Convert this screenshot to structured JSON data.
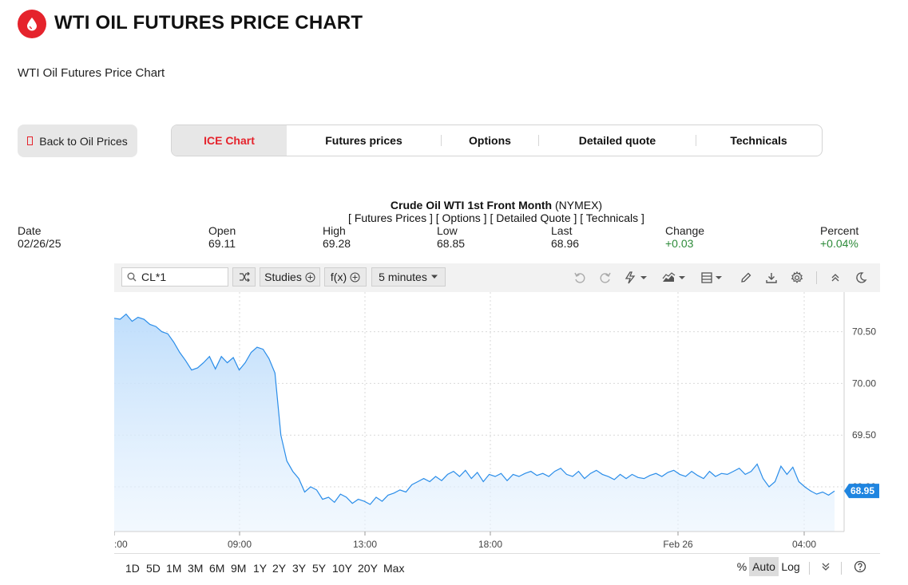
{
  "header": {
    "title": "WTI OIL FUTURES PRICE CHART",
    "subtitle": "WTI Oil Futures Price Chart",
    "logo_icon": "oil-drop-icon",
    "brand_color": "#e5232c"
  },
  "nav": {
    "back_label": "Back to Oil Prices",
    "tabs": [
      {
        "label": "ICE Chart",
        "active": true
      },
      {
        "label": "Futures prices",
        "active": false
      },
      {
        "label": "Options",
        "active": false
      },
      {
        "label": "Detailed quote",
        "active": false
      },
      {
        "label": "Technicals",
        "active": false
      }
    ]
  },
  "chart_header": {
    "name": "Crude Oil WTI 1st Front Month",
    "exchange": "(NYMEX)",
    "links": "[ Futures Prices ] [ Options ] [ Detailed Quote ] [ Technicals ]"
  },
  "quote": {
    "date_label": "Date",
    "date": "02/26/25",
    "open_label": "Open",
    "open": "69.11",
    "high_label": "High",
    "high": "69.28",
    "low_label": "Low",
    "low": "68.85",
    "last_label": "Last",
    "last": "68.96",
    "change_label": "Change",
    "change": "+0.03",
    "percent_label": "Percent",
    "percent": "+0.04%",
    "positive_color": "#2e8b3a"
  },
  "toolbar": {
    "symbol": "CL*1",
    "studies_label": "Studies",
    "fx_label": "f(x)",
    "interval": "5 minutes",
    "icons": [
      "search-icon",
      "compare-icon",
      "plus-circle-icon",
      "undo-icon",
      "redo-icon",
      "lightning-icon",
      "area-chart-icon",
      "layout-icon",
      "pencil-icon",
      "download-icon",
      "gear-icon",
      "collapse-icon",
      "moon-icon"
    ]
  },
  "chart_data": {
    "type": "area",
    "ylim": [
      68.75,
      70.75
    ],
    "yticks": [
      "70.50",
      "70.00",
      "69.50",
      "69.00"
    ],
    "xticks": [
      ":00",
      "09:00",
      "13:00",
      "18:00",
      "Feb 26",
      "04:00"
    ],
    "last_price_label": "68.95",
    "line_color": "#2a8de9",
    "series": [
      {
        "values": [
          70.63,
          70.62,
          70.67,
          70.6,
          70.64,
          70.62,
          70.57,
          70.55,
          70.5,
          70.48,
          70.4,
          70.3,
          70.22,
          70.13,
          70.15,
          70.2,
          70.26,
          70.14,
          70.26,
          70.2,
          70.25,
          70.13,
          70.2,
          70.3,
          70.35,
          70.33,
          70.24,
          70.1,
          69.5,
          69.25,
          69.15,
          69.08,
          68.95,
          69.0,
          68.97,
          68.88,
          68.9,
          68.85,
          68.93,
          68.9,
          68.84,
          68.88,
          68.86,
          68.83,
          68.9,
          68.86,
          68.92,
          68.94,
          68.97,
          68.95,
          69.02,
          69.05,
          69.08,
          69.05,
          69.1,
          69.06,
          69.12,
          69.15,
          69.1,
          69.16,
          69.08,
          69.14,
          69.05,
          69.12,
          69.1,
          69.13,
          69.06,
          69.12,
          69.1,
          69.13,
          69.15,
          69.11,
          69.13,
          69.1,
          69.15,
          69.18,
          69.12,
          69.1,
          69.15,
          69.08,
          69.13,
          69.16,
          69.12,
          69.1,
          69.07,
          69.12,
          69.08,
          69.12,
          69.09,
          69.08,
          69.11,
          69.13,
          69.1,
          69.14,
          69.16,
          69.12,
          69.1,
          69.15,
          69.11,
          69.08,
          69.15,
          69.1,
          69.13,
          69.12,
          69.15,
          69.18,
          69.12,
          69.15,
          69.22,
          69.08,
          69.0,
          69.05,
          69.2,
          69.12,
          69.19,
          69.05,
          69.0,
          68.96,
          68.93,
          68.95,
          68.92,
          68.96
        ]
      }
    ]
  },
  "bottom": {
    "ranges": [
      "1D",
      "5D",
      "1M",
      "3M",
      "6M",
      "9M",
      "1Y",
      "2Y",
      "3Y",
      "5Y",
      "10Y",
      "20Y",
      "Max"
    ],
    "percent_label": "%",
    "auto_label": "Auto",
    "log_label": "Log",
    "auto_active": true
  }
}
